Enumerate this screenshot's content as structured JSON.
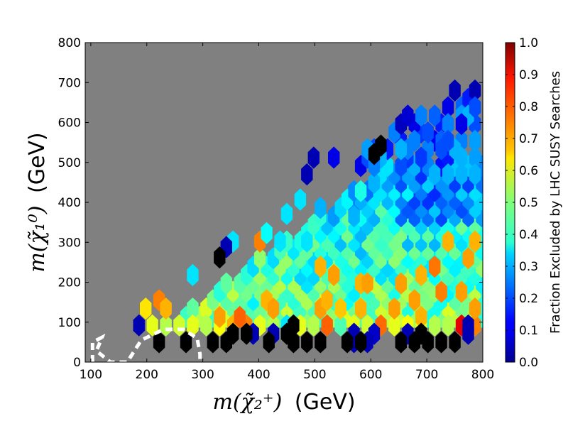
{
  "chart_data": {
    "type": "heatmap",
    "subtype": "hexbin",
    "xlabel": {
      "math": "m(χ̃₂⁺)",
      "unit": "(GeV)"
    },
    "ylabel": {
      "math": "m(χ̃₁⁰)",
      "unit": "(GeV)"
    },
    "xlim": [
      90,
      800
    ],
    "ylim": [
      0,
      800
    ],
    "x_ticks": [
      "100",
      "200",
      "300",
      "400",
      "500",
      "600",
      "700",
      "800"
    ],
    "y_ticks": [
      "0",
      "100",
      "200",
      "300",
      "400",
      "500",
      "600",
      "700",
      "800"
    ],
    "colorbar": {
      "label": "Fraction Excluded by LHC SUSY Searches",
      "range": [
        0.0,
        1.0
      ],
      "colormap": "jet",
      "ticks": [
        "0.0",
        "0.1",
        "0.2",
        "0.3",
        "0.4",
        "0.5",
        "0.6",
        "0.7",
        "0.8",
        "0.9",
        "1.0"
      ]
    },
    "background_color": "#808080",
    "grid": false,
    "hex_cell": {
      "dx_gev": 24,
      "dy_gev": 42
    },
    "excluded_contour": {
      "style": "white dashed",
      "points": [
        [
          103,
          0
        ],
        [
          103,
          50
        ],
        [
          120,
          62
        ],
        [
          110,
          28
        ],
        [
          135,
          0
        ],
        [
          165,
          0
        ],
        [
          190,
          55
        ],
        [
          230,
          82
        ],
        [
          265,
          82
        ],
        [
          290,
          60
        ],
        [
          295,
          20
        ],
        [
          295,
          0
        ]
      ]
    },
    "black_points": [
      [
        222,
        50
      ],
      [
        270,
        50
      ],
      [
        318,
        50
      ],
      [
        342,
        50
      ],
      [
        418,
        50
      ],
      [
        462,
        50
      ],
      [
        486,
        50
      ],
      [
        510,
        50
      ],
      [
        558,
        50
      ],
      [
        582,
        50
      ],
      [
        654,
        50
      ],
      [
        678,
        50
      ],
      [
        702,
        50
      ],
      [
        726,
        50
      ],
      [
        750,
        50
      ],
      [
        354,
        71
      ],
      [
        378,
        71
      ],
      [
        450,
        71
      ],
      [
        690,
        71
      ],
      [
        462,
        92
      ],
      [
        330,
        262
      ],
      [
        606,
        521
      ],
      [
        618,
        542
      ]
    ],
    "scattered_values": [
      [
        186,
        92,
        0.05
      ],
      [
        210,
        92,
        0.6
      ],
      [
        234,
        92,
        0.55
      ],
      [
        258,
        92,
        0.58
      ],
      [
        282,
        92,
        0.6
      ],
      [
        306,
        92,
        0.55
      ],
      [
        330,
        92,
        0.62
      ],
      [
        354,
        92,
        0.7
      ],
      [
        378,
        92,
        0.75
      ],
      [
        402,
        92,
        0.6
      ],
      [
        426,
        92,
        0.55
      ],
      [
        450,
        92,
        0.35
      ],
      [
        474,
        92,
        0.6
      ],
      [
        498,
        92,
        0.55
      ],
      [
        522,
        92,
        0.78
      ],
      [
        546,
        92,
        0.45
      ],
      [
        570,
        92,
        0.6
      ],
      [
        594,
        92,
        0.58
      ],
      [
        618,
        92,
        0.77
      ],
      [
        642,
        92,
        0.6
      ],
      [
        666,
        92,
        0.62
      ],
      [
        690,
        92,
        0.6
      ],
      [
        714,
        92,
        0.55
      ],
      [
        738,
        92,
        0.55
      ],
      [
        762,
        92,
        0.9
      ],
      [
        786,
        92,
        0.75
      ],
      [
        390,
        71,
        0.05
      ],
      [
        426,
        71,
        0.05
      ],
      [
        570,
        71,
        0.05
      ],
      [
        606,
        71,
        0.07
      ],
      [
        666,
        71,
        0.05
      ],
      [
        774,
        71,
        0.05
      ],
      [
        774,
        92,
        0.05
      ],
      [
        570,
        50,
        0.05
      ],
      [
        594,
        50,
        0.05
      ],
      [
        198,
        134,
        0.65
      ],
      [
        222,
        155,
        0.75
      ],
      [
        234,
        134,
        0.7
      ],
      [
        414,
        155,
        0.7
      ],
      [
        426,
        134,
        0.72
      ],
      [
        510,
        134,
        0.72
      ],
      [
        522,
        155,
        0.7
      ],
      [
        546,
        134,
        0.68
      ],
      [
        582,
        134,
        0.7
      ],
      [
        678,
        155,
        0.72
      ],
      [
        726,
        176,
        0.75
      ],
      [
        762,
        176,
        0.72
      ],
      [
        582,
        197,
        0.7
      ],
      [
        594,
        197,
        0.72
      ],
      [
        690,
        218,
        0.7
      ],
      [
        330,
        113,
        0.72
      ],
      [
        366,
        113,
        0.78
      ],
      [
        690,
        113,
        0.7
      ],
      [
        642,
        134,
        0.72
      ],
      [
        786,
        134,
        0.72
      ],
      [
        786,
        302,
        0.7
      ],
      [
        738,
        302,
        0.7
      ],
      [
        774,
        260,
        0.72
      ],
      [
        510,
        239,
        0.7
      ],
      [
        534,
        218,
        0.72
      ],
      [
        402,
        302,
        0.75
      ],
      [
        654,
        197,
        0.72
      ],
      [
        714,
        239,
        0.76
      ],
      [
        282,
        218,
        0.35
      ],
      [
        354,
        302,
        0.35
      ],
      [
        414,
        323,
        0.38
      ],
      [
        438,
        302,
        0.35
      ],
      [
        450,
        371,
        0.35
      ],
      [
        486,
        302,
        0.35
      ],
      [
        570,
        365,
        0.3
      ],
      [
        510,
        386,
        0.3
      ],
      [
        474,
        407,
        0.35
      ],
      [
        582,
        428,
        0.4
      ],
      [
        618,
        470,
        0.35
      ],
      [
        630,
        491,
        0.35
      ],
      [
        342,
        288,
        0.05
      ],
      [
        486,
        470,
        0.05
      ],
      [
        498,
        512,
        0.05
      ],
      [
        534,
        512,
        0.1
      ],
      [
        582,
        491,
        0.1
      ],
      [
        606,
        533,
        0.2
      ],
      [
        654,
        554,
        0.15
      ],
      [
        690,
        575,
        0.18
      ],
      [
        726,
        596,
        0.15
      ],
      [
        714,
        554,
        0.12
      ],
      [
        678,
        596,
        0.1
      ],
      [
        738,
        638,
        0.1
      ],
      [
        762,
        638,
        0.22
      ],
      [
        774,
        659,
        0.15
      ],
      [
        786,
        680,
        0.05
      ],
      [
        750,
        680,
        0.05
      ],
      [
        786,
        596,
        0.2
      ],
      [
        762,
        554,
        0.25
      ],
      [
        738,
        512,
        0.15
      ],
      [
        702,
        533,
        0.25
      ],
      [
        666,
        512,
        0.18
      ],
      [
        630,
        533,
        0.15
      ],
      [
        654,
        491,
        0.2
      ],
      [
        678,
        554,
        0.25
      ],
      [
        762,
        617,
        0.28
      ],
      [
        726,
        554,
        0.22
      ],
      [
        594,
        512,
        0.2
      ],
      [
        618,
        512,
        0.3
      ],
      [
        606,
        449,
        0.3
      ],
      [
        642,
        575,
        0.25
      ],
      [
        702,
        491,
        0.25
      ],
      [
        750,
        533,
        0.3
      ],
      [
        786,
        554,
        0.28
      ],
      [
        774,
        617,
        0.3
      ],
      [
        690,
        617,
        0.25
      ],
      [
        654,
        596,
        0.06
      ],
      [
        666,
        617,
        0.08
      ],
      [
        738,
        596,
        0.25
      ],
      [
        714,
        617,
        0.22
      ],
      [
        762,
        596,
        0.1
      ],
      [
        786,
        638,
        0.2
      ],
      [
        738,
        554,
        0.2
      ],
      [
        690,
        512,
        0.18
      ],
      [
        666,
        533,
        0.25
      ],
      [
        594,
        533,
        0.28
      ],
      [
        606,
        491,
        0.25
      ],
      [
        702,
        575,
        0.2
      ],
      [
        726,
        533,
        0.2
      ],
      [
        654,
        533,
        0.3
      ],
      [
        738,
        470,
        0.3
      ],
      [
        714,
        470,
        0.3
      ],
      [
        762,
        512,
        0.3
      ],
      [
        786,
        512,
        0.28
      ],
      [
        786,
        470,
        0.3
      ],
      [
        762,
        470,
        0.3
      ]
    ]
  }
}
